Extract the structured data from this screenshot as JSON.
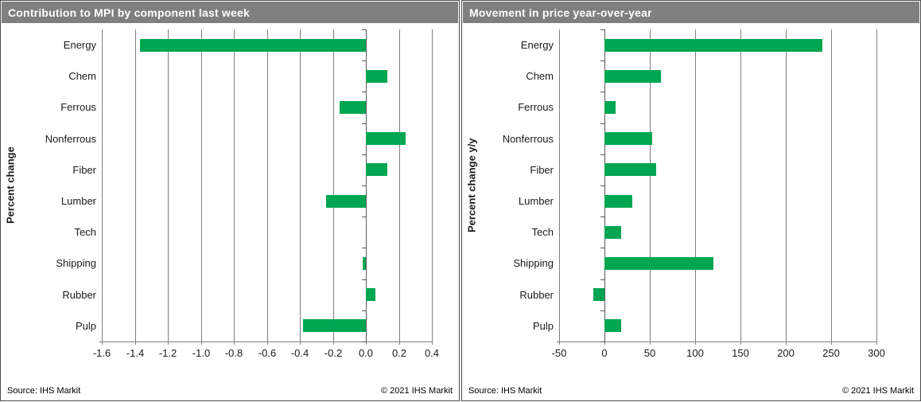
{
  "colors": {
    "header_bg": "#7f7f7f",
    "header_text": "#ffffff",
    "bar": "#00A651",
    "grid_line": "#7f7f7f",
    "axis_line": "#595959",
    "label_text": "#1a1a1a"
  },
  "chart_data": [
    {
      "type": "bar",
      "orientation": "horizontal",
      "title": "Contribution to MPI by component last week",
      "ylabel": "Percent change",
      "categories": [
        "Energy",
        "Chem",
        "Ferrous",
        "Nonferrous",
        "Fiber",
        "Lumber",
        "Tech",
        "Shipping",
        "Rubber",
        "Pulp"
      ],
      "values": [
        -1.37,
        0.13,
        -0.16,
        0.24,
        0.13,
        -0.24,
        0.0,
        -0.02,
        0.06,
        -0.38
      ],
      "xlim": [
        -1.6,
        0.4
      ],
      "xtick_values": [
        -1.6,
        -1.4,
        -1.2,
        -1.0,
        -0.8,
        -0.6,
        -0.4,
        -0.2,
        0.0,
        0.2,
        0.4
      ],
      "xtick_labels": [
        "-1.6",
        "-1.4",
        "-1.2",
        "-1.0",
        "-0.8",
        "-0.6",
        "-0.4",
        "-0.2",
        "0.0",
        "0.2",
        "0.4"
      ],
      "grid": true,
      "legend": false,
      "bar_color": "#00A651",
      "source": "Source: IHS Markit",
      "copyright": "© 2021  IHS Markit"
    },
    {
      "type": "bar",
      "orientation": "horizontal",
      "title": "Movement in price year-over-year",
      "ylabel": "Percent change y/y",
      "categories": [
        "Energy",
        "Chem",
        "Ferrous",
        "Nonferrous",
        "Fiber",
        "Lumber",
        "Tech",
        "Shipping",
        "Rubber",
        "Pulp"
      ],
      "values": [
        240,
        62,
        12,
        53,
        57,
        31,
        18,
        120,
        -12,
        18
      ],
      "xlim": [
        -50,
        300
      ],
      "xtick_values": [
        -50,
        0,
        50,
        100,
        150,
        200,
        250,
        300
      ],
      "xtick_labels": [
        "-50",
        "0",
        "50",
        "100",
        "150",
        "200",
        "250",
        "300"
      ],
      "grid": true,
      "legend": false,
      "bar_color": "#00A651",
      "source": "Source: IHS Markit",
      "copyright": "© 2021  IHS Markit"
    }
  ]
}
